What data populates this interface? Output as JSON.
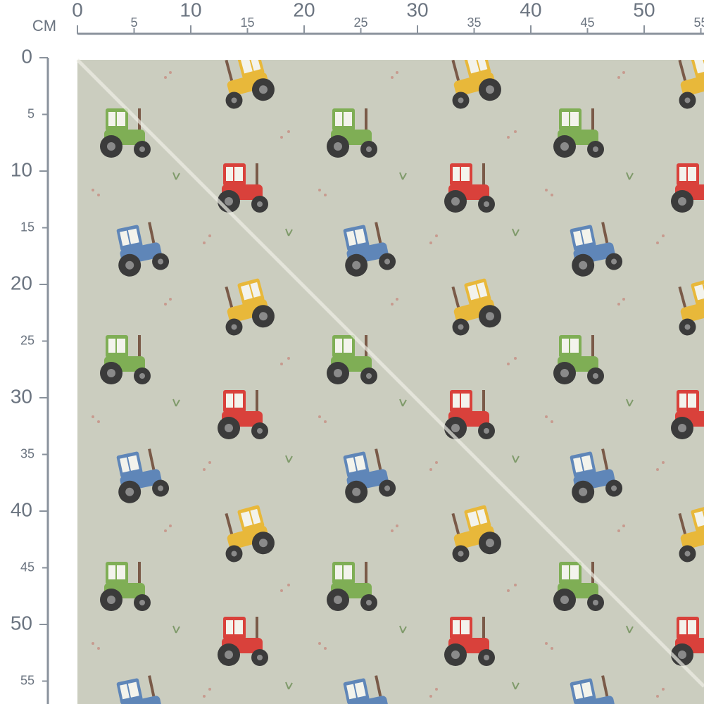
{
  "ruler": {
    "unit": "CM",
    "top": [
      0,
      5,
      10,
      15,
      20,
      25,
      30,
      35,
      40,
      45,
      50,
      55
    ],
    "left": [
      0,
      5,
      10,
      15,
      20,
      25,
      30,
      35,
      40,
      45,
      50,
      55
    ]
  }
}
